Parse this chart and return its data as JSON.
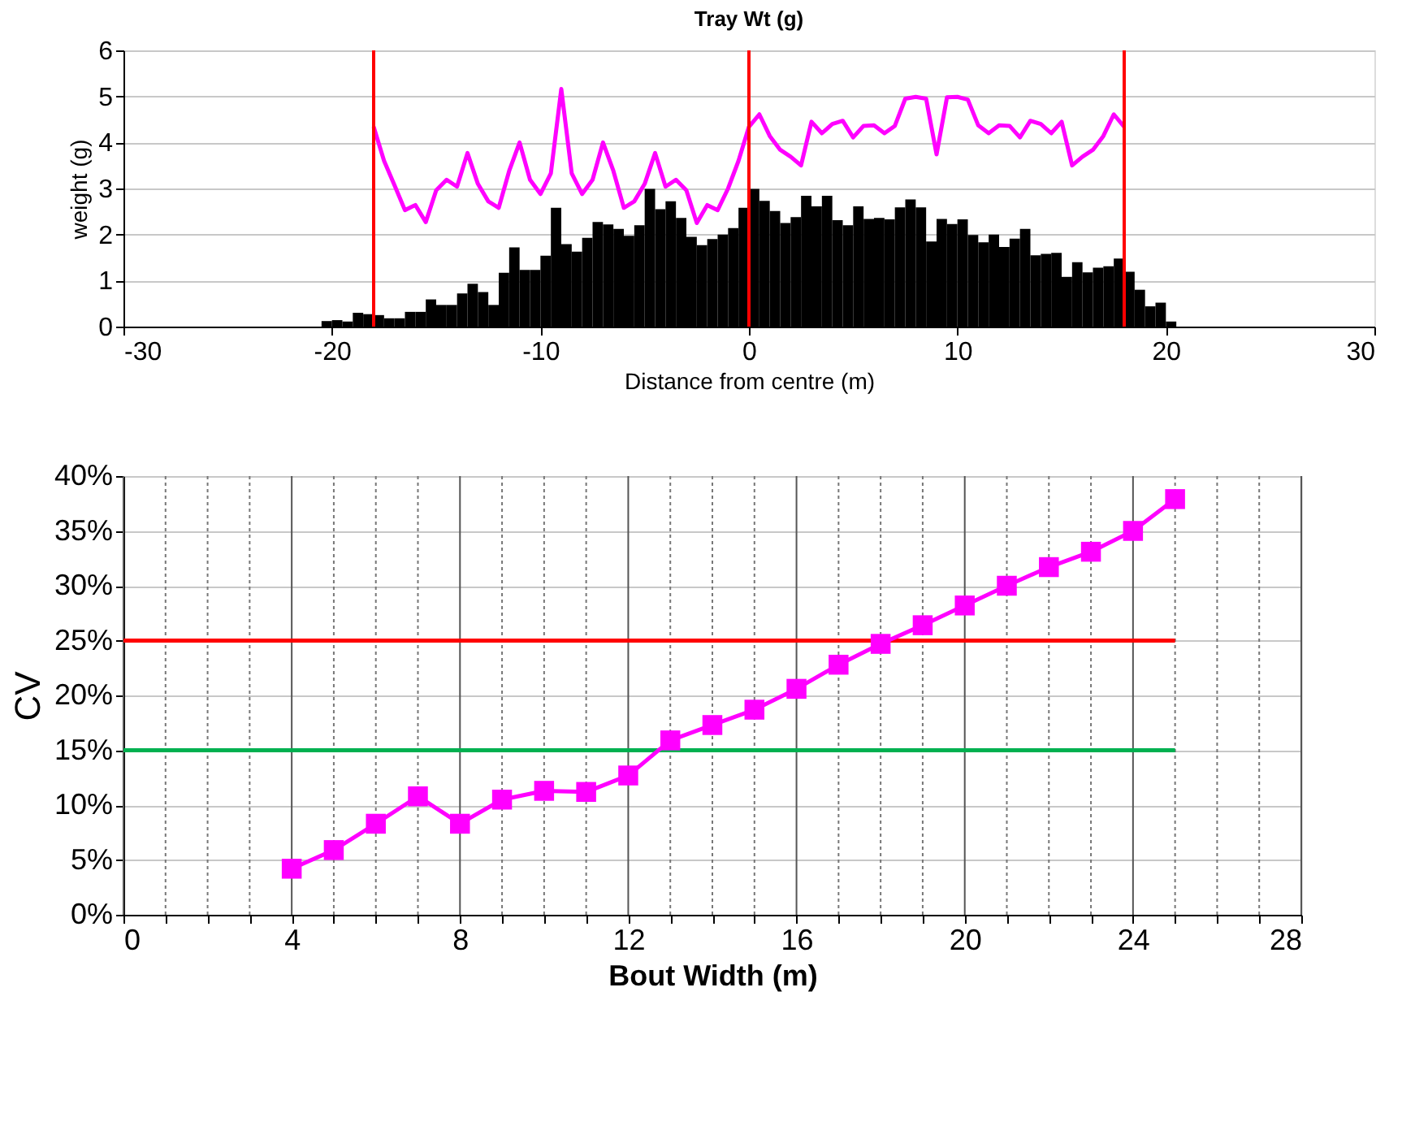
{
  "chart_data": [
    {
      "type": "histogram",
      "title": "Tray Wt (g)",
      "xlabel": "Distance from centre (m)",
      "ylabel": "weight (g)",
      "bins": [
        -20.5,
        -20,
        -19.5,
        -19,
        -18.5,
        -18,
        -17.5,
        -17,
        -16.5,
        -16,
        -15.5,
        -15,
        -14.5,
        -14,
        -13.5,
        -13,
        -12.5,
        -12,
        -11.5,
        -11,
        -10.5,
        -10,
        -9.5,
        -9,
        -8.5,
        -8,
        -7.5,
        -7,
        -6.5,
        -6,
        -5.5,
        -5,
        -4.5,
        -4,
        -3.5,
        -3,
        -2.5,
        -2,
        -1.5,
        -1,
        -0.5,
        0,
        0.5,
        1,
        1.5,
        2,
        2.5,
        3,
        3.5,
        4,
        4.5,
        5,
        5.5,
        6,
        6.5,
        7,
        7.5,
        8,
        8.5,
        9,
        9.5,
        10,
        10.5,
        11,
        11.5,
        12,
        12.5,
        13,
        13.5,
        14,
        14.5,
        15,
        15.5,
        16,
        16.5,
        17,
        17.5,
        18,
        18.5,
        19,
        19.5,
        20,
        20.5
      ],
      "values": [
        0.12,
        0.14,
        0.11,
        0.3,
        0.27,
        0.25,
        0.18,
        0.18,
        0.32,
        0.32,
        0.59,
        0.47,
        0.47,
        0.72,
        0.93,
        0.75,
        0.47,
        1.17,
        1.72,
        1.23,
        1.23,
        1.54,
        2.58,
        1.79,
        1.63,
        1.93,
        2.27,
        2.22,
        2.12,
        1.97,
        2.2,
        2.99,
        2.55,
        2.72,
        2.36,
        1.95,
        1.77,
        1.9,
        2.0,
        2.14,
        2.58,
        2.99,
        2.73,
        2.51,
        2.25,
        2.38,
        2.84,
        2.61,
        2.84,
        2.31,
        2.2,
        2.61,
        2.34,
        2.36,
        2.33,
        2.59,
        2.76,
        2.59,
        1.85,
        2.34,
        2.23,
        2.33,
        1.99,
        1.83,
        2.0,
        1.73,
        1.91,
        2.12,
        1.55,
        1.58,
        1.6,
        1.08,
        1.4,
        1.18,
        1.28,
        1.31,
        1.48,
        1.19,
        0.8,
        0.44,
        0.52,
        0.11
      ],
      "color": "#000000",
      "series": [
        {
          "type": "line",
          "color": "#ff00ff",
          "x": [
            -18,
            -17.5,
            -17,
            -16.5,
            -16,
            -15.5,
            -15,
            -14.5,
            -14,
            -13.5,
            -13,
            -12.5,
            -12,
            -11.5,
            -11,
            -10.5,
            -10,
            -9.5,
            -9,
            -8.5,
            -8,
            -7.5,
            -7,
            -6.5,
            -6,
            -5.5,
            -5,
            -4.5,
            -4,
            -3.5,
            -3,
            -2.5,
            -2,
            -1.5,
            -1,
            -0.5,
            0,
            0.5,
            1,
            1.5,
            2,
            2.5,
            3,
            3.5,
            4,
            4.5,
            5,
            5.5,
            6,
            6.5,
            7,
            7.5,
            8,
            8.5,
            9,
            9.5,
            10,
            10.5,
            11,
            11.5,
            12,
            12.5,
            13,
            13.5,
            14,
            14.5,
            15,
            15.5,
            16,
            16.5,
            17,
            17.5,
            18
          ],
          "values": [
            4.34,
            3.6,
            3.07,
            2.53,
            2.64,
            2.27,
            2.96,
            3.19,
            3.04,
            3.77,
            3.1,
            2.72,
            2.58,
            3.38,
            4.0,
            3.19,
            2.88,
            3.33,
            5.16,
            3.33,
            2.88,
            3.19,
            4.0,
            3.38,
            2.58,
            2.72,
            3.1,
            3.77,
            3.04,
            3.19,
            2.96,
            2.25,
            2.64,
            2.53,
            3.0,
            3.6,
            4.34,
            4.61,
            4.14,
            3.84,
            3.69,
            3.5,
            4.45,
            4.2,
            4.4,
            4.47,
            4.11,
            4.36,
            4.37,
            4.2,
            4.36,
            4.95,
            4.99,
            4.95,
            3.74,
            4.98,
            4.99,
            4.93,
            4.37,
            4.2,
            4.37,
            4.36,
            4.11,
            4.47,
            4.4,
            4.2,
            4.45,
            3.5,
            3.69,
            3.84,
            4.14,
            4.61,
            4.34
          ]
        }
      ],
      "ref_lines": [
        {
          "axis": "x",
          "value": -18,
          "color": "#ff0000"
        },
        {
          "axis": "x",
          "value": 0,
          "color": "#ff0000"
        },
        {
          "axis": "x",
          "value": 18,
          "color": "#ff0000"
        }
      ],
      "xlim": [
        -30,
        30
      ],
      "xticks": [
        -30,
        -20,
        -10,
        0,
        10,
        20,
        30
      ],
      "ylim": [
        0,
        6
      ],
      "yticks": [
        0,
        1,
        2,
        3,
        4,
        5,
        6
      ],
      "grid": "y"
    },
    {
      "type": "line",
      "xlabel": "Bout Width (m)",
      "ylabel": "CV",
      "series": [
        {
          "color": "#ff0000",
          "marker": "none",
          "x": [
            0,
            25
          ],
          "values": [
            25,
            25
          ]
        },
        {
          "color": "#00b050",
          "marker": "none",
          "x": [
            0,
            25
          ],
          "values": [
            15,
            15
          ]
        },
        {
          "color": "#ff00ff",
          "marker": "square",
          "x": [
            4,
            5,
            6,
            7,
            8,
            9,
            10,
            11,
            12,
            13,
            14,
            15,
            16,
            17,
            18,
            19,
            20,
            21,
            22,
            23,
            24,
            25
          ],
          "values": [
            4.2,
            5.9,
            8.3,
            10.8,
            8.3,
            10.5,
            11.3,
            11.2,
            12.7,
            15.9,
            17.3,
            18.7,
            20.6,
            22.8,
            24.7,
            26.4,
            28.2,
            30.0,
            31.7,
            33.1,
            35.0,
            37.9
          ]
        }
      ],
      "xlim": [
        0,
        28
      ],
      "xticks": [
        0,
        {
          "value": 1,
          "label": null
        },
        {
          "value": 2,
          "label": null
        },
        {
          "value": 3,
          "label": null
        },
        4,
        {
          "value": 5,
          "label": null
        },
        {
          "value": 6,
          "label": null
        },
        {
          "value": 7,
          "label": null
        },
        8,
        {
          "value": 9,
          "label": null
        },
        {
          "value": 10,
          "label": null
        },
        {
          "value": 11,
          "label": null
        },
        12,
        {
          "value": 13,
          "label": null
        },
        {
          "value": 14,
          "label": null
        },
        {
          "value": 15,
          "label": null
        },
        16,
        {
          "value": 17,
          "label": null
        },
        {
          "value": 18,
          "label": null
        },
        {
          "value": 19,
          "label": null
        },
        20,
        {
          "value": 21,
          "label": null
        },
        {
          "value": 22,
          "label": null
        },
        {
          "value": 23,
          "label": null
        },
        24,
        {
          "value": 25,
          "label": null
        },
        {
          "value": 26,
          "label": null
        },
        {
          "value": 27,
          "label": null
        },
        28
      ],
      "ylim": [
        0,
        40
      ],
      "yticks": [
        {
          "value": 0,
          "label": "0%"
        },
        {
          "value": 5,
          "label": "5%"
        },
        {
          "value": 10,
          "label": "10%"
        },
        {
          "value": 15,
          "label": "15%"
        },
        {
          "value": 20,
          "label": "20%"
        },
        {
          "value": 25,
          "label": "25%"
        },
        {
          "value": 30,
          "label": "30%"
        },
        {
          "value": 35,
          "label": "35%"
        },
        {
          "value": 40,
          "label": "40%"
        }
      ],
      "grid": true
    }
  ]
}
